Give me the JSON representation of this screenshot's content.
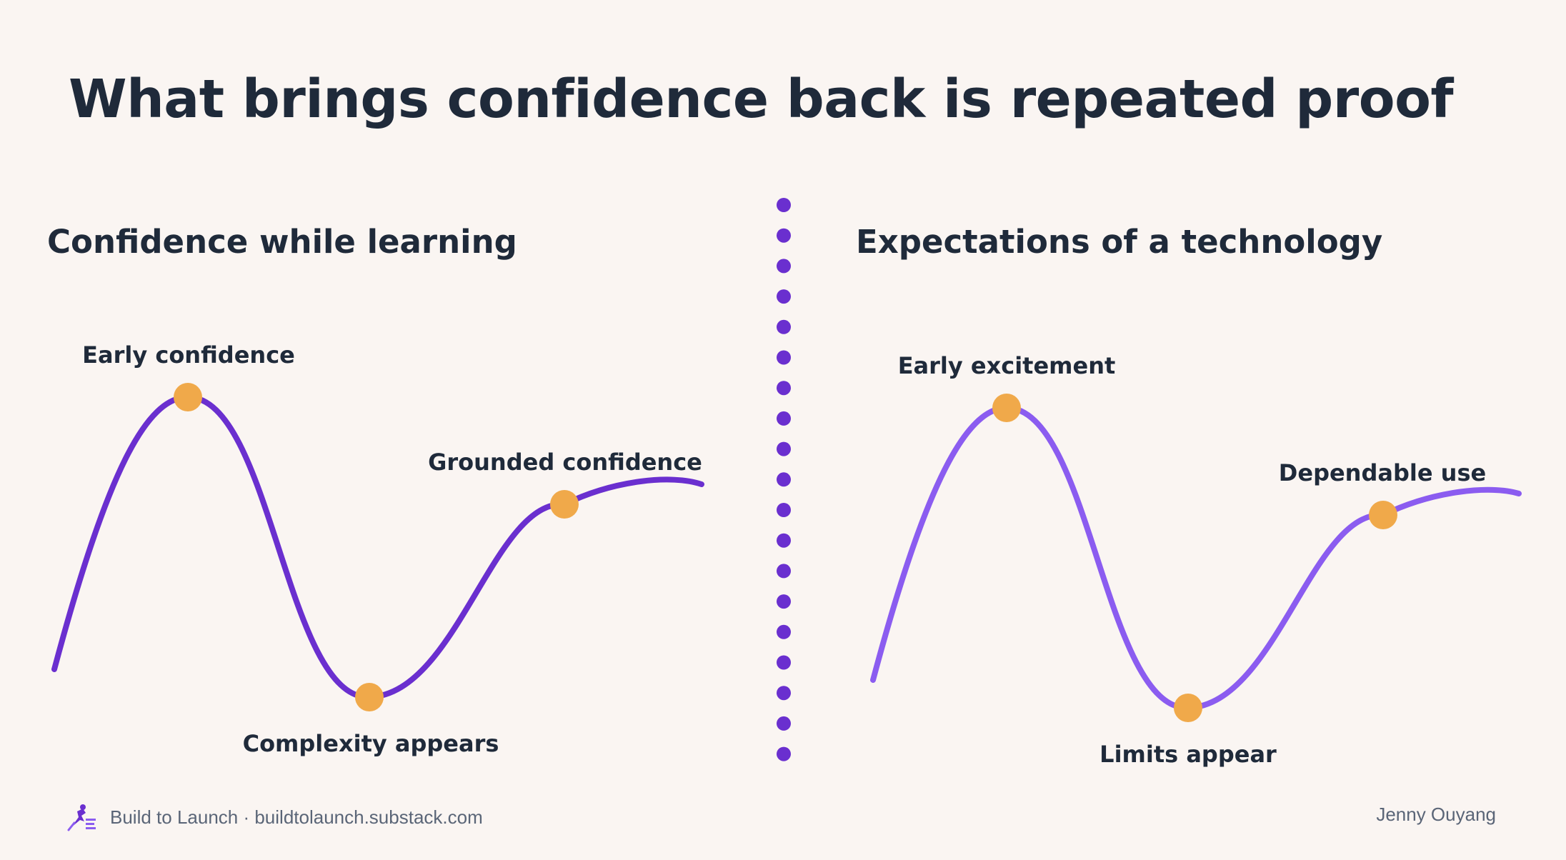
{
  "title": "What brings confidence back is repeated proof",
  "left_panel": {
    "heading": "Confidence while learning",
    "labels": {
      "peak": "Early confidence",
      "trough": "Complexity appears",
      "recovery": "Grounded confidence"
    },
    "curve_color": "#6a2fcf"
  },
  "right_panel": {
    "heading": "Expectations of a technology",
    "labels": {
      "peak": "Early excitement",
      "trough": "Limits appear",
      "recovery": "Dependable use"
    },
    "curve_color": "#8b5cf0"
  },
  "marker_color": "#f0a94a",
  "divider_color": "#6a2fcf",
  "footer": {
    "source": "Build to Launch · buildtolaunch.substack.com",
    "author": "Jenny Ouyang"
  }
}
